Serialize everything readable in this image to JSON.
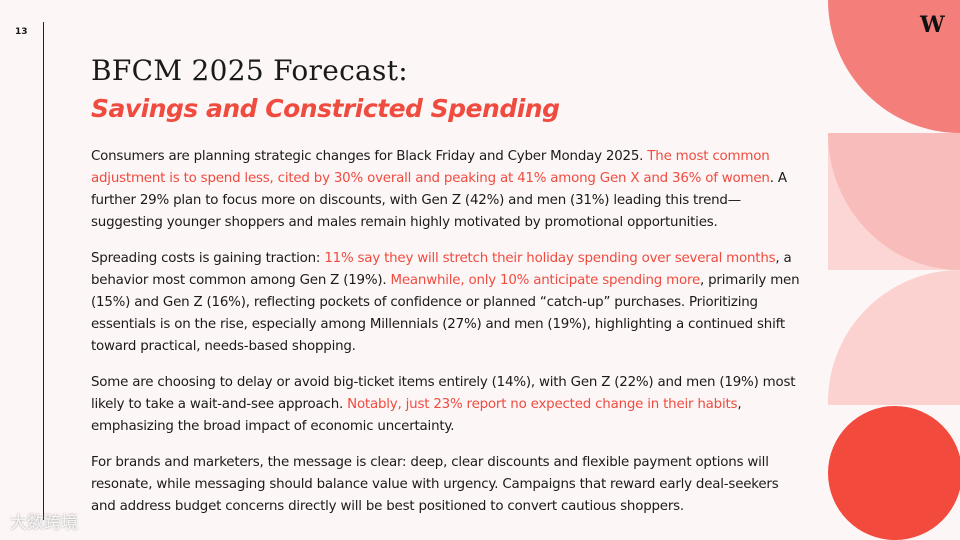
{
  "page_number": "13",
  "logo": "W",
  "title": "BFCM 2025 Forecast:",
  "subtitle": "Savings and Constricted Spending",
  "accent_color": "#ef4b3f",
  "paragraphs": [
    [
      {
        "text": "Consumers are planning strategic changes for Black Friday and Cyber Monday 2025. "
      },
      {
        "text": "The most common adjustment is to spend less, cited by 30% overall and peaking at 41% among Gen X and 36% of women",
        "accent": true
      },
      {
        "text": ". A further 29% plan to focus more on discounts, with Gen Z (42%) and men (31%) leading this trend—suggesting younger shoppers and males remain highly motivated by promotional opportunities."
      }
    ],
    [
      {
        "text": "Spreading costs is gaining traction: "
      },
      {
        "text": "11% say they will stretch their holiday spending over several months",
        "accent": true
      },
      {
        "text": ", a behavior most common among Gen Z (19%). "
      },
      {
        "text": "Meanwhile, only 10% anticipate spending more",
        "accent": true
      },
      {
        "text": ", primarily men (15%) and Gen Z (16%), reflecting pockets of confidence or planned “catch-up” purchases. Prioritizing essentials is on the rise, especially among Millennials (27%) and men (19%), highlighting a continued shift toward practical, needs-based shopping."
      }
    ],
    [
      {
        "text": "Some are choosing to delay or avoid big-ticket items entirely (14%), with Gen Z (22%) and men (19%) most likely to take a wait-and-see approach. "
      },
      {
        "text": "Notably, just 23% report no expected change in their habits",
        "accent": true
      },
      {
        "text": ", emphasizing the broad impact of economic uncertainty."
      }
    ],
    [
      {
        "text": "For brands and marketers, the message is clear: deep, clear discounts and flexible payment options will resonate, while messaging should balance value with urgency. Campaigns that reward early deal-seekers and address budget concerns directly will be best positioned to convert cautious shoppers."
      }
    ]
  ],
  "watermark": "大数跨境"
}
